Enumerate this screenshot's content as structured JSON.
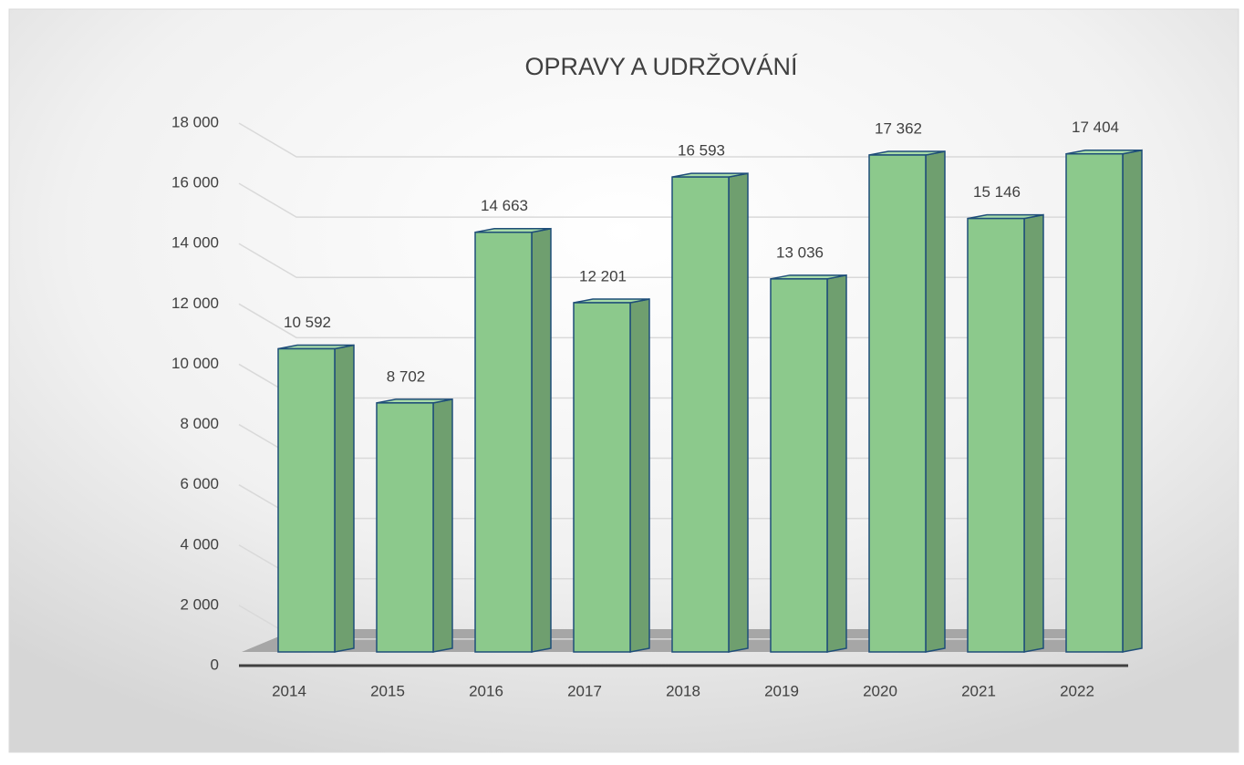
{
  "chart_data": {
    "type": "bar3d",
    "title": "OPRAVY A UDRŽOVÁNÍ",
    "categories": [
      "2014",
      "2015",
      "2016",
      "2017",
      "2018",
      "2019",
      "2020",
      "2021",
      "2022"
    ],
    "values": [
      10592,
      8702,
      14663,
      12201,
      16593,
      13036,
      17362,
      15146,
      17404
    ],
    "value_labels": [
      "10 592",
      "8 702",
      "14 663",
      "12 201",
      "16 593",
      "13 036",
      "17 362",
      "15 146",
      "17 404"
    ],
    "color": "#8cc98c",
    "ylim": [
      0,
      18000
    ],
    "yticks": [
      0,
      {
        "value": 2000,
        "label": "2 000"
      },
      {
        "value": 4000,
        "label": "4 000"
      },
      {
        "value": 6000,
        "label": "6 000"
      },
      {
        "value": 8000,
        "label": "8 000"
      },
      {
        "value": 10000,
        "label": "10 000"
      },
      {
        "value": 12000,
        "label": "12 000"
      },
      {
        "value": 14000,
        "label": "14 000"
      },
      {
        "value": 16000,
        "label": "16 000"
      },
      {
        "value": 18000,
        "label": "18 000"
      }
    ],
    "grid": true
  }
}
